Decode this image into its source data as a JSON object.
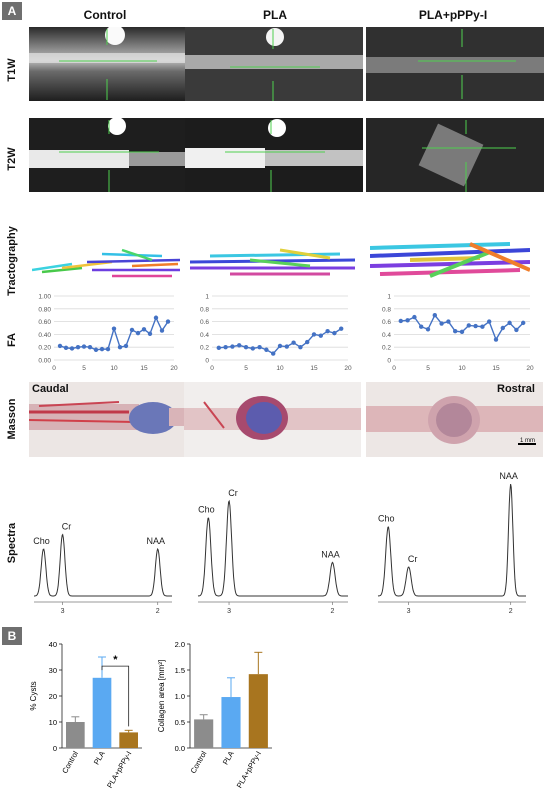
{
  "panel_a": {
    "tag": "A",
    "columns": [
      "Control",
      "PLA",
      "PLA+pPPy-I"
    ],
    "rows": [
      "T1W",
      "T2W",
      "Tractography",
      "FA",
      "Masson",
      "Spectra"
    ],
    "masson_labels": {
      "left": "Caudal",
      "right": "Rostral",
      "scale_bar": "1 mm"
    }
  },
  "panel_b": {
    "tag": "B",
    "significance_marker": "*"
  },
  "chart_data": [
    {
      "type": "line",
      "id": "fa-control",
      "x": [
        1,
        2,
        3,
        4,
        5,
        6,
        7,
        8,
        9,
        10,
        11,
        12,
        13,
        14,
        15,
        16,
        17,
        18,
        19
      ],
      "values": [
        0.22,
        0.19,
        0.18,
        0.2,
        0.21,
        0.2,
        0.16,
        0.17,
        0.17,
        0.49,
        0.2,
        0.22,
        0.47,
        0.42,
        0.48,
        0.41,
        0.66,
        0.46,
        0.6
      ],
      "xticks": [
        0,
        5,
        10,
        15,
        20
      ],
      "yticks": [
        "0.00",
        "0.20",
        "0.40",
        "0.60",
        "0.80",
        "1.00"
      ],
      "ylim": [
        0,
        1
      ],
      "xlim": [
        0,
        20
      ],
      "grid": true,
      "color": "#4472c4"
    },
    {
      "type": "line",
      "id": "fa-pla",
      "x": [
        1,
        2,
        3,
        4,
        5,
        6,
        7,
        8,
        9,
        10,
        11,
        12,
        13,
        14,
        15,
        16,
        17,
        18,
        19
      ],
      "values": [
        0.19,
        0.2,
        0.21,
        0.23,
        0.2,
        0.18,
        0.2,
        0.16,
        0.1,
        0.22,
        0.21,
        0.27,
        0.2,
        0.28,
        0.4,
        0.38,
        0.45,
        0.42,
        0.49
      ],
      "xticks": [
        0,
        5,
        10,
        15,
        20
      ],
      "yticks": [
        "0",
        "0.2",
        "0.4",
        "0.6",
        "0.8",
        "1"
      ],
      "ylim": [
        0,
        1
      ],
      "xlim": [
        0,
        20
      ],
      "grid": true,
      "color": "#4472c4"
    },
    {
      "type": "line",
      "id": "fa-plapppy",
      "x": [
        1,
        2,
        3,
        4,
        5,
        6,
        7,
        8,
        9,
        10,
        11,
        12,
        13,
        14,
        15,
        16,
        17,
        18,
        19
      ],
      "values": [
        0.61,
        0.62,
        0.67,
        0.52,
        0.48,
        0.7,
        0.57,
        0.6,
        0.45,
        0.44,
        0.54,
        0.53,
        0.52,
        0.6,
        0.32,
        0.5,
        0.58,
        0.47,
        0.58
      ],
      "xticks": [
        0,
        5,
        10,
        15,
        20
      ],
      "yticks": [
        "0",
        "0.2",
        "0.4",
        "0.6",
        "0.8",
        "1"
      ],
      "ylim": [
        0,
        1
      ],
      "xlim": [
        0,
        20
      ],
      "grid": true,
      "color": "#4472c4"
    },
    {
      "type": "line",
      "id": "spectrum-control",
      "peaks": [
        {
          "label": "Cho",
          "ppm": 3.2,
          "height": 0.42
        },
        {
          "label": "Cr",
          "ppm": 3.0,
          "height": 0.55
        },
        {
          "label": "NAA",
          "ppm": 2.0,
          "height": 0.42
        }
      ],
      "xticks": [
        "3",
        "2"
      ],
      "xlim": [
        3.3,
        1.85
      ]
    },
    {
      "type": "line",
      "id": "spectrum-pla",
      "peaks": [
        {
          "label": "Cho",
          "ppm": 3.2,
          "height": 0.7
        },
        {
          "label": "Cr",
          "ppm": 3.0,
          "height": 0.85
        },
        {
          "label": "NAA",
          "ppm": 2.0,
          "height": 0.3
        }
      ],
      "xticks": [
        "3",
        "2"
      ],
      "xlim": [
        3.3,
        1.85
      ]
    },
    {
      "type": "line",
      "id": "spectrum-plapppy",
      "peaks": [
        {
          "label": "Cho",
          "ppm": 3.2,
          "height": 0.62
        },
        {
          "label": "Cr",
          "ppm": 3.0,
          "height": 0.26
        },
        {
          "label": "NAA",
          "ppm": 2.0,
          "height": 1.0
        }
      ],
      "xticks": [
        "3",
        "2"
      ],
      "xlim": [
        3.3,
        1.85
      ]
    },
    {
      "type": "bar",
      "id": "cysts",
      "categories": [
        "Control",
        "PLA",
        "PLA+pPPy-I"
      ],
      "values": [
        10,
        27,
        6
      ],
      "errors": [
        2,
        8,
        0.8
      ],
      "colors": [
        "#8c8c8c",
        "#5aa9f2",
        "#a8751f"
      ],
      "ylabel": "% Cysts",
      "yticks": [
        "0",
        "10",
        "20",
        "30",
        "40"
      ],
      "ylim": [
        0,
        40
      ]
    },
    {
      "type": "bar",
      "id": "collagen",
      "categories": [
        "Control",
        "PLA",
        "PLA+pPPy-I"
      ],
      "values": [
        0.55,
        0.98,
        1.42
      ],
      "errors": [
        0.09,
        0.37,
        0.42
      ],
      "colors": [
        "#8c8c8c",
        "#5aa9f2",
        "#a8751f"
      ],
      "ylabel": "Collagen area [mm²]",
      "yticks": [
        "0.0",
        "0.5",
        "1.0",
        "1.5",
        "2.0"
      ],
      "ylim": [
        0,
        2
      ]
    }
  ]
}
